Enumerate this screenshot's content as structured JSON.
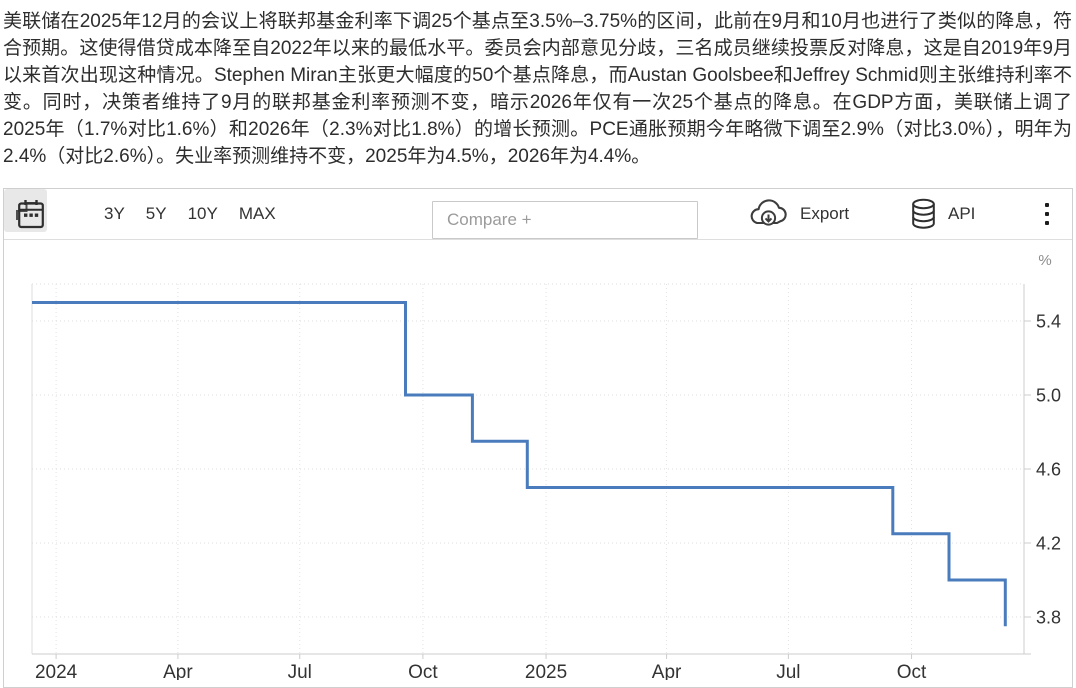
{
  "summary": {
    "text": "美联储在2025年12月的会议上将联邦基金利率下调25个基点至3.5%–3.75%的区间，此前在9月和10月也进行了类似的降息，符合预期。这使得借贷成本降至自2022年以来的最低水平。委员会内部意见分歧，三名成员继续投票反对降息，这是自2019年9月以来首次出现这种情况。Stephen Miran主张更大幅度的50个基点降息，而Austan Goolsbee和Jeffrey Schmid则主张维持利率不变。同时，决策者维持了9月的联邦基金利率预测不变，暗示2026年仅有一次25个基点的降息。在GDP方面，美联储上调了2025年（1.7%对比1.6%）和2026年（2.3%对比1.8%）的增长预测。PCE通胀预期今年略微下调至2.9%（对比3.0%），明年为2.4%（对比2.6%）。失业率预测维持不变，2025年为4.5%，2026年为4.4%。"
  },
  "toolbar": {
    "calendar_icon": "calendar-icon",
    "ranges": [
      "3Y",
      "5Y",
      "10Y",
      "MAX"
    ],
    "chart_type_icon": "step-line-icon",
    "compare_placeholder": "Compare +",
    "export_label": "Export",
    "export_icon": "cloud-download-icon",
    "api_label": "API",
    "api_icon": "database-icon",
    "menu_icon": "kebab-menu-icon"
  },
  "chart_data": {
    "type": "line",
    "step": true,
    "title": "",
    "xlabel": "",
    "ylabel": "%",
    "y_axis_unit": "%",
    "line_color": "#4a7cbd",
    "grid": true,
    "legend_position": "none",
    "x_domain": [
      "2023-12-14",
      "2025-12-24"
    ],
    "y_domain": [
      3.6,
      5.6
    ],
    "y_ticks": [
      5.4,
      5.0,
      4.6,
      4.2,
      3.8
    ],
    "y_tick_labels": [
      "5.4",
      "5.0",
      "4.6",
      "4.2",
      "3.8"
    ],
    "x_ticks": [
      {
        "date": "2024-01-01",
        "label": "2024"
      },
      {
        "date": "2024-04-01",
        "label": "Apr"
      },
      {
        "date": "2024-07-01",
        "label": "Jul"
      },
      {
        "date": "2024-10-01",
        "label": "Oct"
      },
      {
        "date": "2025-01-01",
        "label": "2025"
      },
      {
        "date": "2025-04-01",
        "label": "Apr"
      },
      {
        "date": "2025-07-01",
        "label": "Jul"
      },
      {
        "date": "2025-10-01",
        "label": "Oct"
      }
    ],
    "series": [
      {
        "name": "联邦基金利率",
        "points": [
          [
            "2023-12-14",
            5.5
          ],
          [
            "2024-09-18",
            5.0
          ],
          [
            "2024-11-07",
            4.75
          ],
          [
            "2024-12-18",
            4.5
          ],
          [
            "2025-09-17",
            4.25
          ],
          [
            "2025-10-29",
            4.0
          ],
          [
            "2025-12-10",
            3.75
          ]
        ]
      }
    ]
  }
}
